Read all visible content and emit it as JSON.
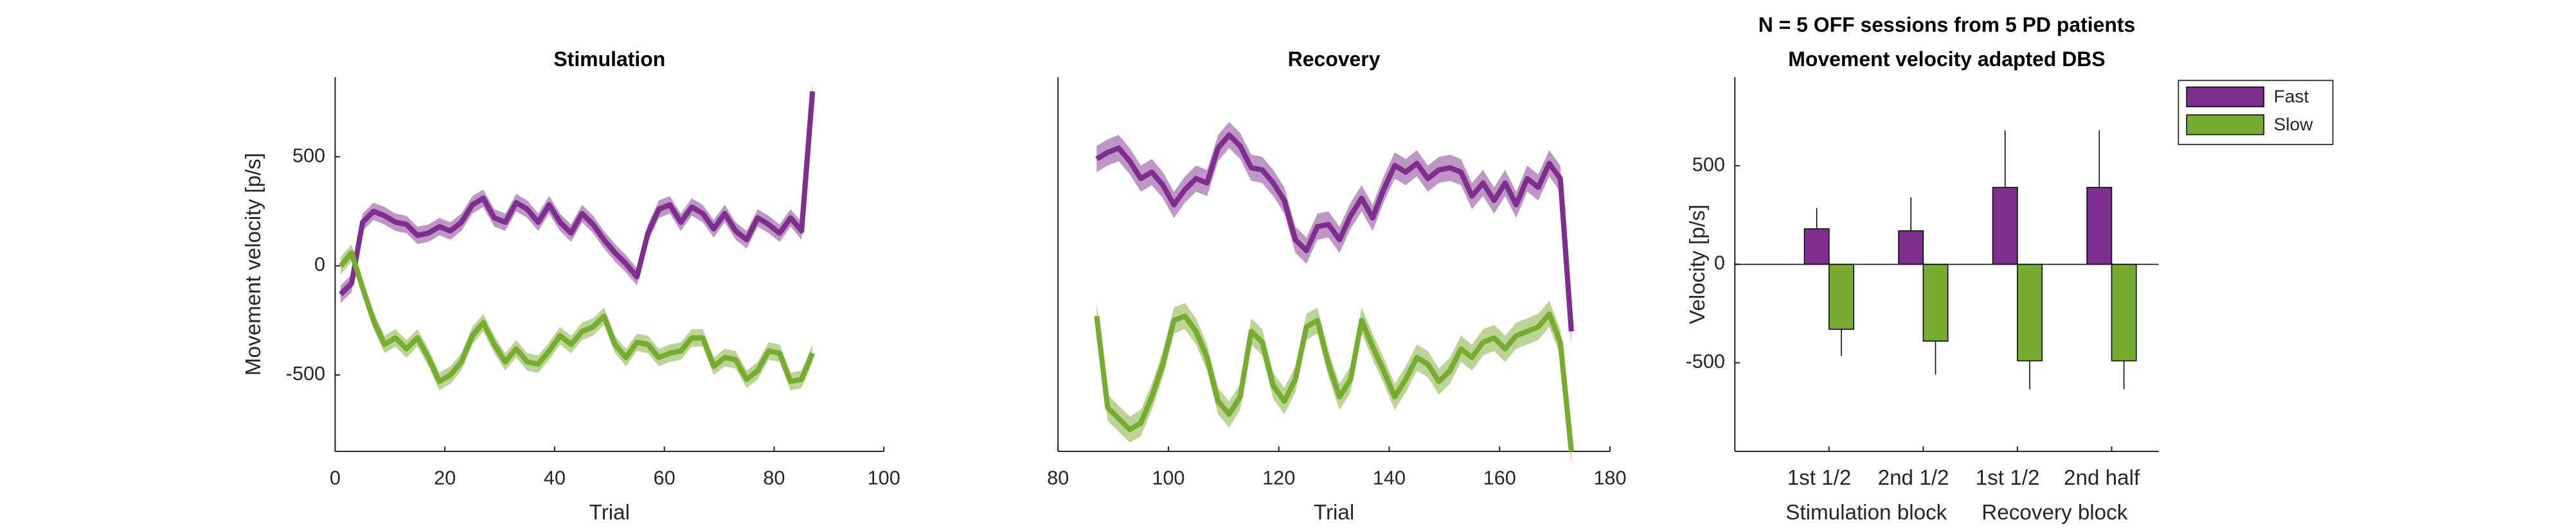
{
  "chart_data": [
    {
      "type": "line",
      "title": "Stimulation",
      "xlabel": "Trial",
      "ylabel": "Movement velocity [p/s]",
      "xlim": [
        0,
        100
      ],
      "xticks": [
        0,
        20,
        40,
        60,
        80,
        100
      ],
      "ylim": [
        -850,
        865
      ],
      "yticks": [
        -500,
        0,
        500
      ],
      "x": [
        1,
        3,
        5,
        7,
        9,
        11,
        13,
        15,
        17,
        19,
        21,
        23,
        25,
        27,
        29,
        31,
        33,
        35,
        37,
        39,
        41,
        43,
        45,
        47,
        49,
        51,
        53,
        55,
        57,
        59,
        61,
        63,
        65,
        67,
        69,
        71,
        73,
        75,
        77,
        79,
        81,
        83,
        85,
        87
      ],
      "series": [
        {
          "name": "Fast",
          "color": "#7e2f8e",
          "error": 40,
          "values": [
            -130,
            -80,
            200,
            250,
            230,
            200,
            190,
            140,
            150,
            180,
            160,
            200,
            280,
            310,
            220,
            200,
            290,
            260,
            200,
            280,
            200,
            150,
            240,
            190,
            120,
            60,
            10,
            -50,
            150,
            260,
            280,
            200,
            270,
            240,
            170,
            240,
            160,
            120,
            220,
            190,
            150,
            220,
            160,
            800
          ]
        },
        {
          "name": "Slow",
          "color": "#77ac30",
          "error": 40,
          "values": [
            0,
            60,
            -100,
            -250,
            -360,
            -330,
            -380,
            -330,
            -420,
            -530,
            -500,
            -440,
            -320,
            -260,
            -360,
            -440,
            -380,
            -440,
            -450,
            -390,
            -320,
            -360,
            -300,
            -280,
            -230,
            -360,
            -420,
            -350,
            -360,
            -420,
            -400,
            -390,
            -330,
            -330,
            -460,
            -420,
            -430,
            -520,
            -480,
            -390,
            -400,
            -530,
            -520,
            -400
          ]
        }
      ]
    },
    {
      "type": "line",
      "title": "Recovery",
      "xlabel": "Trial",
      "xlim": [
        80,
        180
      ],
      "xticks": [
        80,
        100,
        120,
        140,
        160,
        180
      ],
      "ylim": [
        -850,
        865
      ],
      "x": [
        87,
        89,
        91,
        93,
        95,
        97,
        99,
        101,
        103,
        105,
        107,
        109,
        111,
        113,
        115,
        117,
        119,
        121,
        123,
        125,
        127,
        129,
        131,
        133,
        135,
        137,
        139,
        141,
        143,
        145,
        147,
        149,
        151,
        153,
        155,
        157,
        159,
        161,
        163,
        165,
        167,
        169,
        171,
        173
      ],
      "series": [
        {
          "name": "Fast",
          "color": "#7e2f8e",
          "error": 60,
          "values": [
            490,
            520,
            540,
            480,
            400,
            430,
            370,
            280,
            350,
            400,
            380,
            540,
            600,
            550,
            450,
            440,
            380,
            300,
            120,
            70,
            180,
            190,
            120,
            230,
            310,
            220,
            350,
            460,
            430,
            470,
            400,
            440,
            450,
            430,
            320,
            380,
            300,
            380,
            280,
            400,
            360,
            470,
            400,
            -300
          ]
        },
        {
          "name": "Slow",
          "color": "#77ac30",
          "error": 60,
          "values": [
            -230,
            -650,
            -700,
            -750,
            -720,
            -600,
            -450,
            -250,
            -230,
            -300,
            -420,
            -620,
            -680,
            -600,
            -300,
            -350,
            -550,
            -620,
            -520,
            -280,
            -250,
            -450,
            -600,
            -520,
            -250,
            -370,
            -480,
            -600,
            -520,
            -420,
            -450,
            -530,
            -480,
            -380,
            -420,
            -350,
            -330,
            -380,
            -320,
            -300,
            -280,
            -220,
            -350,
            -850
          ]
        }
      ]
    },
    {
      "type": "bar",
      "title": [
        "N = 5 OFF sessions from 5 PD patients",
        "Movement velocity adapted DBS"
      ],
      "ylabel": "Velocity [p/s]",
      "ylim": [
        -950,
        950
      ],
      "yticks": [
        -500,
        0,
        500
      ],
      "categories": [
        "1st 1/2",
        "2nd 1/2",
        "1st 1/2",
        "2nd half"
      ],
      "groups": [
        "Stimulation block",
        "Recovery block"
      ],
      "legend": "outside-top-right",
      "series": [
        {
          "name": "Fast",
          "color": "#7e2f8e",
          "values": [
            180,
            170,
            390,
            390
          ],
          "errors": [
            105,
            170,
            290,
            290
          ]
        },
        {
          "name": "Slow",
          "color": "#77ac30",
          "values": [
            -330,
            -390,
            -490,
            -490
          ],
          "errors": [
            135,
            170,
            145,
            145
          ]
        }
      ]
    }
  ]
}
